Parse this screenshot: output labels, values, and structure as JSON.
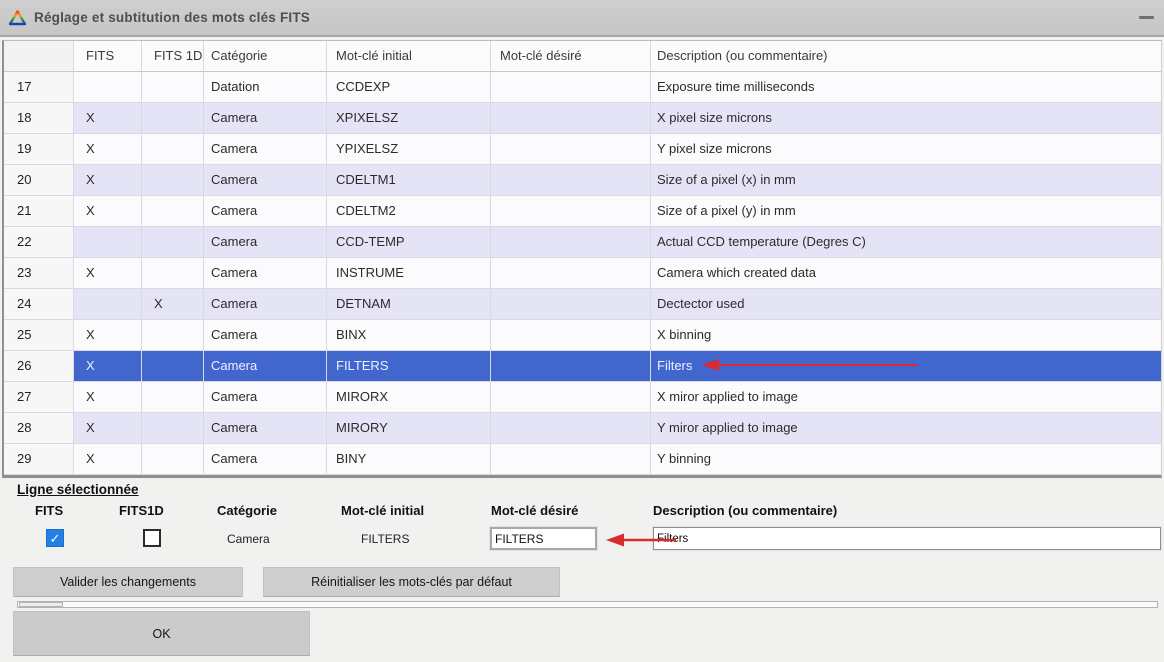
{
  "window": {
    "title": "Réglage et subtitution des mots clés FITS"
  },
  "table": {
    "headers": {
      "num": "",
      "fits": "FITS",
      "fits1d": "FITS 1D",
      "category": "Catégorie",
      "initial": "Mot-clé initial",
      "desired": "Mot-clé désiré",
      "description": "Description (ou commentaire)"
    },
    "rows": [
      {
        "num": "17",
        "fits": "",
        "fits1d": "",
        "category": "Datation",
        "initial": "CCDEXP",
        "desired": "",
        "description": "Exposure time milliseconds",
        "shaded": false,
        "selected": false
      },
      {
        "num": "18",
        "fits": "X",
        "fits1d": "",
        "category": "Camera",
        "initial": "XPIXELSZ",
        "desired": "",
        "description": "X pixel size microns",
        "shaded": true,
        "selected": false
      },
      {
        "num": "19",
        "fits": "X",
        "fits1d": "",
        "category": "Camera",
        "initial": "YPIXELSZ",
        "desired": "",
        "description": "Y pixel size microns",
        "shaded": false,
        "selected": false
      },
      {
        "num": "20",
        "fits": "X",
        "fits1d": "",
        "category": "Camera",
        "initial": "CDELTM1",
        "desired": "",
        "description": "Size of a pixel (x) in mm",
        "shaded": true,
        "selected": false
      },
      {
        "num": "21",
        "fits": "X",
        "fits1d": "",
        "category": "Camera",
        "initial": "CDELTM2",
        "desired": "",
        "description": "Size of a pixel (y) in mm",
        "shaded": false,
        "selected": false
      },
      {
        "num": "22",
        "fits": "",
        "fits1d": "",
        "category": "Camera",
        "initial": "CCD-TEMP",
        "desired": "",
        "description": "Actual CCD temperature (Degres C)",
        "shaded": true,
        "selected": false
      },
      {
        "num": "23",
        "fits": "X",
        "fits1d": "",
        "category": "Camera",
        "initial": "INSTRUME",
        "desired": "",
        "description": "Camera which created data",
        "shaded": false,
        "selected": false
      },
      {
        "num": "24",
        "fits": "",
        "fits1d": "X",
        "category": "Camera",
        "initial": "DETNAM",
        "desired": "",
        "description": "Dectector used",
        "shaded": true,
        "selected": false
      },
      {
        "num": "25",
        "fits": "X",
        "fits1d": "",
        "category": "Camera",
        "initial": "BINX",
        "desired": "",
        "description": "X binning",
        "shaded": false,
        "selected": false
      },
      {
        "num": "26",
        "fits": "X",
        "fits1d": "",
        "category": "Camera",
        "initial": "FILTERS",
        "desired": "",
        "description": "Filters",
        "shaded": false,
        "selected": true
      },
      {
        "num": "27",
        "fits": "X",
        "fits1d": "",
        "category": "Camera",
        "initial": "MIRORX",
        "desired": "",
        "description": "X miror applied to image",
        "shaded": false,
        "selected": false
      },
      {
        "num": "28",
        "fits": "X",
        "fits1d": "",
        "category": "Camera",
        "initial": "MIRORY",
        "desired": "",
        "description": "Y miror applied to image",
        "shaded": true,
        "selected": false
      },
      {
        "num": "29",
        "fits": "X",
        "fits1d": "",
        "category": "Camera",
        "initial": "BINY",
        "desired": "",
        "description": "Y binning",
        "shaded": false,
        "selected": false
      }
    ]
  },
  "panel": {
    "title": "Ligne sélectionnée",
    "labels": {
      "fits": "FITS",
      "fits1d": "FITS1D",
      "category": "Catégorie",
      "initial": "Mot-clé initial",
      "desired": "Mot-clé désiré",
      "description": "Description (ou commentaire)"
    },
    "values": {
      "category": "Camera",
      "initial": "FILTERS"
    },
    "fits_checked": true,
    "fits1d_checked": false,
    "desired_input": "FILTERS",
    "description_input": "Filters"
  },
  "buttons": {
    "validate": "Valider les changements",
    "reset": "Réinitialiser les mots-clés par défaut",
    "ok": "OK"
  },
  "colors": {
    "selected_row": "#4167ce",
    "shaded_row": "#e4e4f6",
    "arrow": "#d92b2b",
    "checkbox_checked": "#2580e4"
  }
}
